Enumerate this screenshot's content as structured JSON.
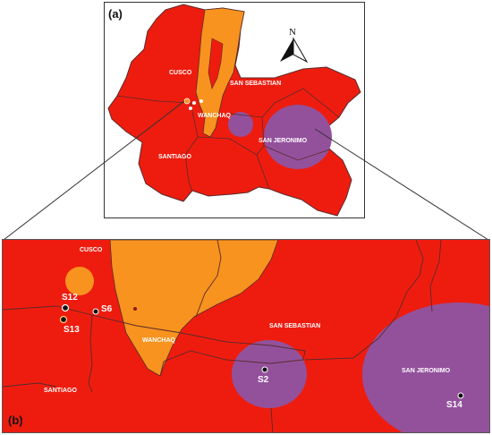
{
  "panels": {
    "a": {
      "letter": "(a)"
    },
    "b": {
      "letter": "(b)"
    }
  },
  "north_arrow": {
    "label": "N"
  },
  "districts": {
    "cusco": "CUSCO",
    "san_sebastian": "SAN SEBASTIAN",
    "wanchaq": "WANCHAQ",
    "santiago": "SANTIAGO",
    "san_jeronimo": "SAN JERONIMO"
  },
  "sites": {
    "s12": "S12",
    "s13": "S13",
    "s6": "S6",
    "s2": "S2",
    "s14": "S14"
  },
  "colors": {
    "red": "#ee1c0f",
    "orange": "#f7931e",
    "purple": "#93519c",
    "border": "#5a2b2b"
  }
}
